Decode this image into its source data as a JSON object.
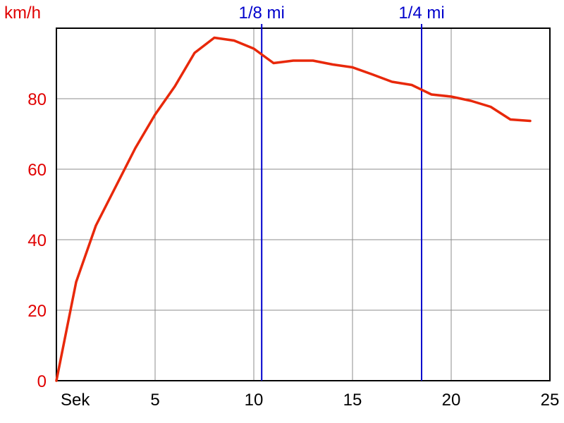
{
  "chart_data": {
    "type": "line",
    "ylabel": "km/h",
    "xlabel": "Sek",
    "xlim": [
      0,
      25
    ],
    "ylim": [
      0,
      100
    ],
    "xticks": [
      5,
      10,
      15,
      20,
      25
    ],
    "yticks": [
      0,
      20,
      40,
      60,
      80
    ],
    "grid": true,
    "series": [
      {
        "color": "#e8280a",
        "x": [
          0,
          1,
          2,
          3,
          4,
          5,
          6,
          7,
          8,
          9,
          10,
          11,
          12,
          13,
          14,
          15,
          16,
          17,
          18,
          19,
          20,
          21,
          22,
          23,
          24
        ],
        "y": [
          0,
          28,
          44,
          55,
          66,
          75.5,
          83.5,
          93,
          97.3,
          96.5,
          94.2,
          90.1,
          90.8,
          90.8,
          89.7,
          88.9,
          86.9,
          84.8,
          83.9,
          81.2,
          80.6,
          79.4,
          77.7,
          74.1,
          73.7
        ]
      }
    ],
    "markers": [
      {
        "label": "1/8 mi",
        "x": 10.4,
        "color": "#0000cc"
      },
      {
        "label": "1/4 mi",
        "x": 18.5,
        "color": "#0000cc"
      }
    ]
  }
}
